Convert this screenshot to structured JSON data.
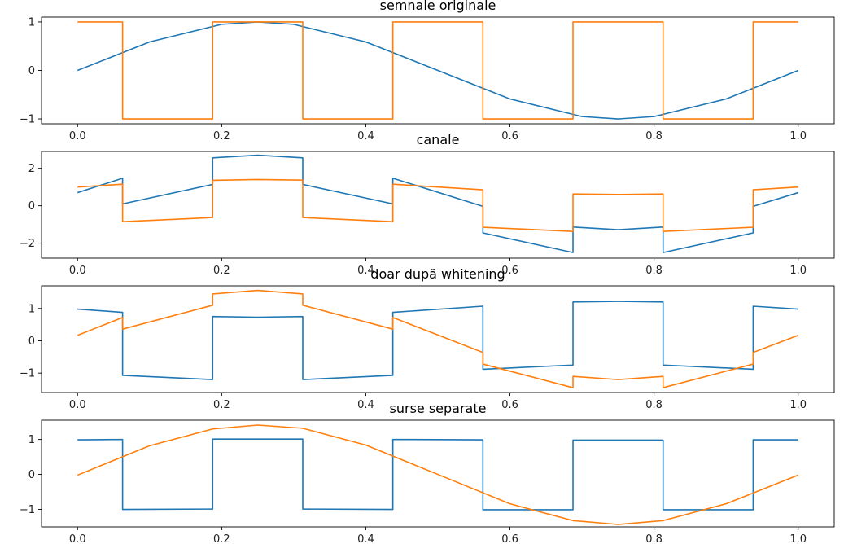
{
  "figure": {
    "background": "#ffffff"
  },
  "chart_data": [
    {
      "type": "line",
      "title": "semnale originale",
      "xlabel": "",
      "ylabel": "",
      "xlim": [
        -0.05,
        1.05
      ],
      "ylim": [
        -1.1,
        1.1
      ],
      "xticks": [
        0.0,
        0.2,
        0.4,
        0.6,
        0.8,
        1.0
      ],
      "xtick_labels": [
        "0.0",
        "0.2",
        "0.4",
        "0.6",
        "0.8",
        "1.0"
      ],
      "yticks": [
        -1,
        0,
        1
      ],
      "ytick_labels": [
        "−1",
        "0",
        "1"
      ],
      "grid": false,
      "series": [
        {
          "color": "#1f77b4",
          "points": [
            [
              0,
              0
            ],
            [
              0.1,
              0.588
            ],
            [
              0.2,
              0.951
            ],
            [
              0.25,
              1.0
            ],
            [
              0.3,
              0.951
            ],
            [
              0.4,
              0.588
            ],
            [
              0.5,
              0.0
            ],
            [
              0.6,
              -0.588
            ],
            [
              0.7,
              -0.951
            ],
            [
              0.75,
              -1.0
            ],
            [
              0.8,
              -0.951
            ],
            [
              0.9,
              -0.588
            ],
            [
              1.0,
              0.0
            ]
          ]
        },
        {
          "color": "#ff7f0e",
          "points": [
            [
              0,
              1
            ],
            [
              0.0625,
              1
            ],
            [
              0.0625,
              -1
            ],
            [
              0.1875,
              -1
            ],
            [
              0.1875,
              1
            ],
            [
              0.3125,
              1
            ],
            [
              0.3125,
              -1
            ],
            [
              0.4375,
              -1
            ],
            [
              0.4375,
              1
            ],
            [
              0.5625,
              1
            ],
            [
              0.5625,
              -1
            ],
            [
              0.6875,
              -1
            ],
            [
              0.6875,
              1
            ],
            [
              0.8125,
              1
            ],
            [
              0.8125,
              -1
            ],
            [
              0.9375,
              -1
            ],
            [
              0.9375,
              1
            ],
            [
              1.0,
              1
            ]
          ]
        }
      ]
    },
    {
      "type": "line",
      "title": "canale",
      "xlabel": "",
      "ylabel": "",
      "xlim": [
        -0.05,
        1.05
      ],
      "ylim": [
        -2.8,
        2.9
      ],
      "xticks": [
        0.0,
        0.2,
        0.4,
        0.6,
        0.8,
        1.0
      ],
      "xtick_labels": [
        "0.0",
        "0.2",
        "0.4",
        "0.6",
        "0.8",
        "1.0"
      ],
      "yticks": [
        -2,
        0,
        2
      ],
      "ytick_labels": [
        "−2",
        "0",
        "2"
      ],
      "grid": false,
      "series": [
        {
          "color": "#1f77b4",
          "points": [
            [
              0,
              0.7
            ],
            [
              0.0625,
              1.47
            ],
            [
              0.0625,
              0.1
            ],
            [
              0.1875,
              1.14
            ],
            [
              0.1875,
              2.56
            ],
            [
              0.25,
              2.7
            ],
            [
              0.3125,
              2.56
            ],
            [
              0.3125,
              1.14
            ],
            [
              0.4375,
              0.1
            ],
            [
              0.4375,
              1.47
            ],
            [
              0.5625,
              -0.03
            ],
            [
              0.5625,
              -1.45
            ],
            [
              0.6875,
              -2.5
            ],
            [
              0.6875,
              -1.14
            ],
            [
              0.75,
              -1.28
            ],
            [
              0.8125,
              -1.14
            ],
            [
              0.8125,
              -2.5
            ],
            [
              0.9375,
              -1.45
            ],
            [
              0.9375,
              -0.03
            ],
            [
              1.0,
              0.7
            ]
          ]
        },
        {
          "color": "#ff7f0e",
          "points": [
            [
              0,
              1.0
            ],
            [
              0.0625,
              1.15
            ],
            [
              0.0625,
              -0.85
            ],
            [
              0.1875,
              -0.63
            ],
            [
              0.1875,
              1.36
            ],
            [
              0.25,
              1.4
            ],
            [
              0.3125,
              1.37
            ],
            [
              0.3125,
              -0.63
            ],
            [
              0.4375,
              -0.85
            ],
            [
              0.4375,
              1.15
            ],
            [
              0.5625,
              0.85
            ],
            [
              0.5625,
              -1.15
            ],
            [
              0.6875,
              -1.37
            ],
            [
              0.6875,
              0.63
            ],
            [
              0.75,
              0.6
            ],
            [
              0.8125,
              0.63
            ],
            [
              0.8125,
              -1.37
            ],
            [
              0.9375,
              -1.15
            ],
            [
              0.9375,
              0.85
            ],
            [
              1.0,
              1.0
            ]
          ]
        }
      ]
    },
    {
      "type": "line",
      "title": "doar după whitening",
      "xlabel": "",
      "ylabel": "",
      "xlim": [
        -0.05,
        1.05
      ],
      "ylim": [
        -1.6,
        1.7
      ],
      "xticks": [
        0.0,
        0.2,
        0.4,
        0.6,
        0.8,
        1.0
      ],
      "xtick_labels": [
        "0.0",
        "0.2",
        "0.4",
        "0.6",
        "0.8",
        "1.0"
      ],
      "yticks": [
        -1,
        0,
        1
      ],
      "ytick_labels": [
        "−1",
        "0",
        "1"
      ],
      "grid": false,
      "series": [
        {
          "color": "#1f77b4",
          "points": [
            [
              0,
              0.98
            ],
            [
              0.0625,
              0.88
            ],
            [
              0.0625,
              -1.07
            ],
            [
              0.1875,
              -1.2
            ],
            [
              0.1875,
              0.75
            ],
            [
              0.25,
              0.73
            ],
            [
              0.3125,
              0.75
            ],
            [
              0.3125,
              -1.2
            ],
            [
              0.4375,
              -1.07
            ],
            [
              0.4375,
              0.88
            ],
            [
              0.5625,
              1.07
            ],
            [
              0.5625,
              -0.88
            ],
            [
              0.6875,
              -0.75
            ],
            [
              0.6875,
              1.2
            ],
            [
              0.75,
              1.22
            ],
            [
              0.8125,
              1.2
            ],
            [
              0.8125,
              -0.75
            ],
            [
              0.9375,
              -0.88
            ],
            [
              0.9375,
              1.07
            ],
            [
              1.0,
              0.98
            ]
          ]
        },
        {
          "color": "#ff7f0e",
          "points": [
            [
              0,
              0.17
            ],
            [
              0.0625,
              0.72
            ],
            [
              0.0625,
              0.36
            ],
            [
              0.1875,
              1.1
            ],
            [
              0.1875,
              1.45
            ],
            [
              0.25,
              1.56
            ],
            [
              0.3125,
              1.45
            ],
            [
              0.3125,
              1.1
            ],
            [
              0.4375,
              0.36
            ],
            [
              0.4375,
              0.72
            ],
            [
              0.5625,
              -0.36
            ],
            [
              0.5625,
              -0.72
            ],
            [
              0.6875,
              -1.45
            ],
            [
              0.6875,
              -1.1
            ],
            [
              0.75,
              -1.2
            ],
            [
              0.8125,
              -1.1
            ],
            [
              0.8125,
              -1.45
            ],
            [
              0.9375,
              -0.72
            ],
            [
              0.9375,
              -0.36
            ],
            [
              1.0,
              0.17
            ]
          ]
        }
      ]
    },
    {
      "type": "line",
      "title": "surse separate",
      "xlabel": "",
      "ylabel": "",
      "xlim": [
        -0.05,
        1.05
      ],
      "ylim": [
        -1.5,
        1.55
      ],
      "xticks": [
        0.0,
        0.2,
        0.4,
        0.6,
        0.8,
        1.0
      ],
      "xtick_labels": [
        "0.0",
        "0.2",
        "0.4",
        "0.6",
        "0.8",
        "1.0"
      ],
      "yticks": [
        -1,
        0,
        1
      ],
      "ytick_labels": [
        "−1",
        "0",
        "1"
      ],
      "grid": false,
      "series": [
        {
          "color": "#1f77b4",
          "points": [
            [
              0,
              0.99
            ],
            [
              0.0625,
              1.0
            ],
            [
              0.0625,
              -1.0
            ],
            [
              0.1875,
              -0.99
            ],
            [
              0.1875,
              1.01
            ],
            [
              0.3125,
              1.01
            ],
            [
              0.3125,
              -0.99
            ],
            [
              0.4375,
              -1.0
            ],
            [
              0.4375,
              1.0
            ],
            [
              0.5625,
              0.99
            ],
            [
              0.5625,
              -1.01
            ],
            [
              0.6875,
              -1.01
            ],
            [
              0.6875,
              0.98
            ],
            [
              0.8125,
              0.98
            ],
            [
              0.8125,
              -1.01
            ],
            [
              0.9375,
              -1.01
            ],
            [
              0.9375,
              0.99
            ],
            [
              1.0,
              0.99
            ]
          ]
        },
        {
          "color": "#ff7f0e",
          "points": [
            [
              0,
              -0.02
            ],
            [
              0.1,
              0.82
            ],
            [
              0.1875,
              1.3
            ],
            [
              0.25,
              1.41
            ],
            [
              0.3125,
              1.32
            ],
            [
              0.4,
              0.84
            ],
            [
              0.5,
              0.0
            ],
            [
              0.6,
              -0.84
            ],
            [
              0.6875,
              -1.32
            ],
            [
              0.75,
              -1.43
            ],
            [
              0.8125,
              -1.32
            ],
            [
              0.9,
              -0.84
            ],
            [
              1.0,
              -0.02
            ]
          ]
        }
      ]
    }
  ]
}
